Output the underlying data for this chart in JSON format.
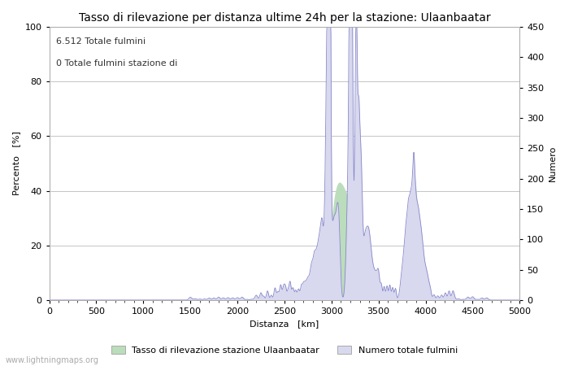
{
  "title": "Tasso di rilevazione per distanza ultime 24h per la stazione: Ulaanbaatar",
  "xlabel": "Distanza   [km]",
  "ylabel_left": "Percento   [%]",
  "ylabel_right": "Numero",
  "annotation_line1": "6.512 Totale fulmini",
  "annotation_line2": "0 Totale fulmini stazione di",
  "legend_label1": "Tasso di rilevazione stazione Ulaanbaatar",
  "legend_label2": "Numero totale fulmini",
  "watermark": "www.lightningmaps.org",
  "xlim": [
    0,
    5000
  ],
  "ylim_left": [
    0,
    100
  ],
  "ylim_right": [
    0,
    450
  ],
  "xticks": [
    0,
    500,
    1000,
    1500,
    2000,
    2500,
    3000,
    3500,
    4000,
    4500,
    5000
  ],
  "yticks_left": [
    0,
    20,
    40,
    60,
    80,
    100
  ],
  "yticks_right": [
    0,
    50,
    100,
    150,
    200,
    250,
    300,
    350,
    400,
    450
  ],
  "bg_color": "#ffffff",
  "grid_color": "#bbbbbb",
  "line_color": "#8888cc",
  "fill_blue_color": "#d8d8ee",
  "fill_green_color": "#bbddbb",
  "title_fontsize": 10,
  "label_fontsize": 8,
  "tick_fontsize": 8,
  "figwidth": 7.0,
  "figheight": 4.5,
  "dpi": 100
}
